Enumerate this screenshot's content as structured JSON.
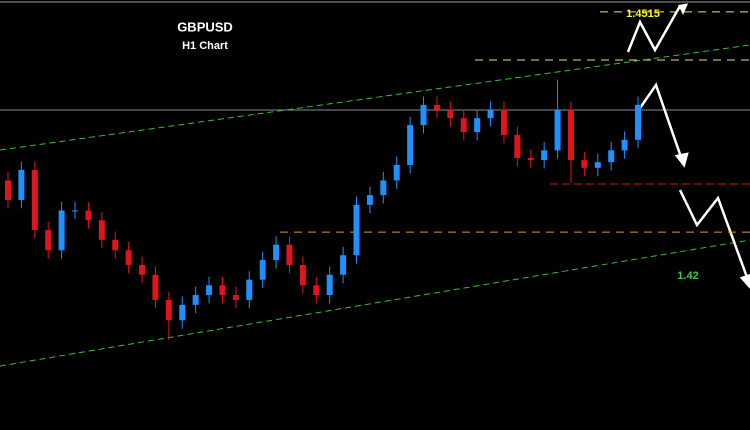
{
  "chart_data": {
    "type": "candlestick",
    "title": "GBPUSD",
    "subtitle": "H1 Chart",
    "ylim": [
      1.3917,
      1.4532
    ],
    "levels": [
      1.4515,
      1.42
    ],
    "level_colors": [
      "#ffff00",
      "#3ec93e"
    ],
    "up_color": "#1e90ff",
    "down_color": "#e0151b",
    "open": [
      1.4274,
      1.4246,
      1.4289,
      1.4203,
      1.4174,
      1.4231,
      1.4231,
      1.4217,
      1.4189,
      1.4174,
      1.4153,
      1.4139,
      1.4103,
      1.4074,
      1.4096,
      1.411,
      1.4124,
      1.411,
      1.4103,
      1.4132,
      1.416,
      1.4182,
      1.4153,
      1.4124,
      1.411,
      1.4139,
      1.4167,
      1.4239,
      1.4253,
      1.4274,
      1.4296,
      1.4353,
      1.4382,
      1.4375,
      1.4363,
      1.4343,
      1.4363,
      1.4375,
      1.4339,
      1.4306,
      1.4303,
      1.4317,
      1.4375,
      1.4303,
      1.4292,
      1.43,
      1.4317,
      1.4332
    ],
    "high": [
      1.4286,
      1.4301,
      1.4301,
      1.4215,
      1.4243,
      1.4243,
      1.4243,
      1.4229,
      1.4201,
      1.4186,
      1.4165,
      1.4151,
      1.4115,
      1.4108,
      1.4122,
      1.4136,
      1.4136,
      1.4122,
      1.4144,
      1.4172,
      1.4194,
      1.4194,
      1.4165,
      1.4136,
      1.4151,
      1.4179,
      1.4251,
      1.4265,
      1.4286,
      1.4308,
      1.4365,
      1.4394,
      1.4394,
      1.4387,
      1.4375,
      1.4375,
      1.4387,
      1.4387,
      1.4351,
      1.4318,
      1.4329,
      1.4418,
      1.4387,
      1.4315,
      1.4312,
      1.4329,
      1.4344,
      1.4394
    ],
    "low": [
      1.4234,
      1.4234,
      1.4191,
      1.4162,
      1.4162,
      1.4219,
      1.4205,
      1.4177,
      1.4162,
      1.4141,
      1.4127,
      1.4091,
      1.4046,
      1.4062,
      1.4084,
      1.4098,
      1.4098,
      1.4091,
      1.4091,
      1.412,
      1.4148,
      1.4141,
      1.4112,
      1.4098,
      1.4098,
      1.4127,
      1.4155,
      1.4227,
      1.4241,
      1.4262,
      1.4284,
      1.4341,
      1.4363,
      1.4351,
      1.4331,
      1.4331,
      1.4351,
      1.4327,
      1.4294,
      1.4291,
      1.4291,
      1.4305,
      1.427,
      1.428,
      1.428,
      1.4288,
      1.4305,
      1.432
    ],
    "close": [
      1.4246,
      1.4289,
      1.4203,
      1.4174,
      1.4231,
      1.4231,
      1.4217,
      1.4189,
      1.4174,
      1.4153,
      1.4139,
      1.4103,
      1.4074,
      1.4096,
      1.411,
      1.4124,
      1.411,
      1.4103,
      1.4132,
      1.416,
      1.4182,
      1.4153,
      1.4124,
      1.411,
      1.4139,
      1.4167,
      1.4239,
      1.4253,
      1.4274,
      1.4296,
      1.4353,
      1.4382,
      1.4375,
      1.4363,
      1.4343,
      1.4363,
      1.4375,
      1.4339,
      1.4306,
      1.4303,
      1.4317,
      1.4375,
      1.4303,
      1.4292,
      1.43,
      1.4317,
      1.4332,
      1.4382
    ]
  }
}
